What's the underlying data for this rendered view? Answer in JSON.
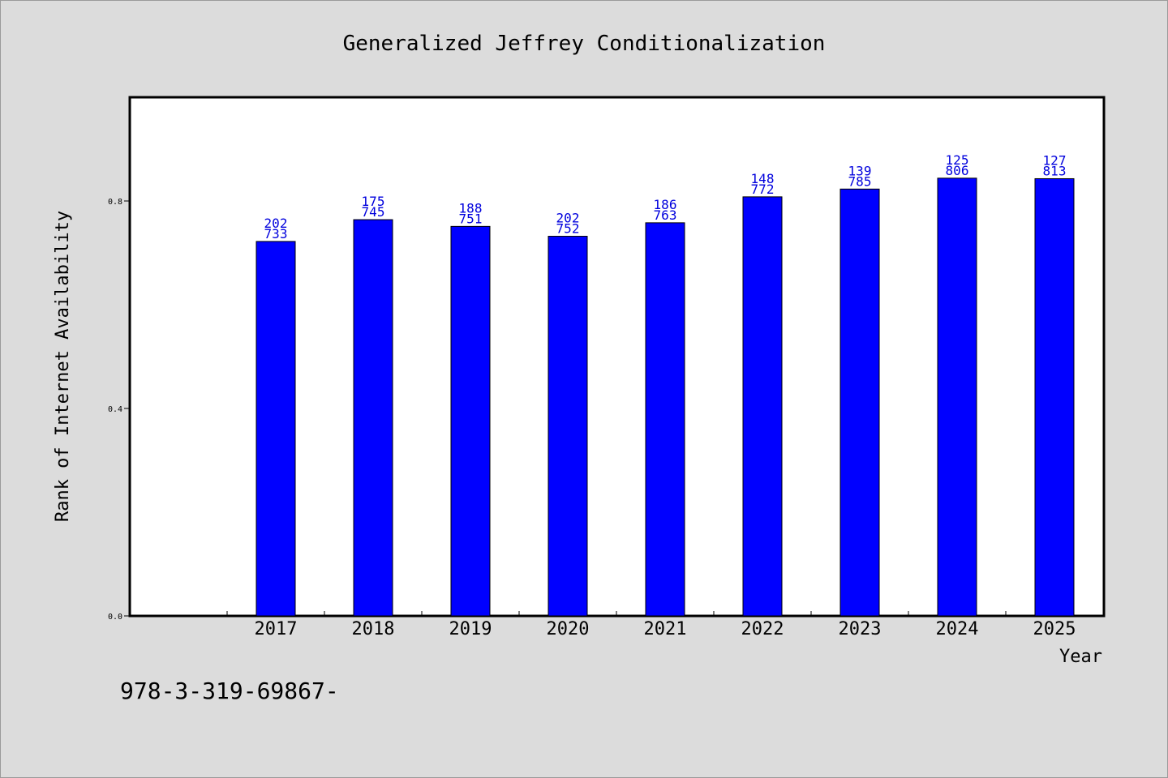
{
  "chart_data": {
    "type": "bar",
    "title": "Generalized Jeffrey Conditionalization",
    "xlabel": "Year",
    "ylabel": "Rank of Internet Availability",
    "categories": [
      "2017",
      "2018",
      "2019",
      "2020",
      "2021",
      "2022",
      "2023",
      "2024",
      "2025"
    ],
    "values": [
      0.722,
      0.764,
      0.751,
      0.732,
      0.758,
      0.808,
      0.823,
      0.844,
      0.843
    ],
    "value_labels": [
      [
        "202",
        "733"
      ],
      [
        "175",
        "745"
      ],
      [
        "188",
        "751"
      ],
      [
        "202",
        "752"
      ],
      [
        "186",
        "763"
      ],
      [
        "148",
        "772"
      ],
      [
        "139",
        "785"
      ],
      [
        "125",
        "806"
      ],
      [
        "127",
        "813"
      ]
    ],
    "ylim": [
      0,
      1.0
    ],
    "yticks": [
      "0.0",
      "0.4",
      "0.8"
    ],
    "ytick_values": [
      0.0,
      0.4,
      0.8
    ],
    "grid": false,
    "legend": "none",
    "bar_color": "#0000ff",
    "label_color": "#0000dd"
  },
  "footnote": "978-3-319-69867-"
}
